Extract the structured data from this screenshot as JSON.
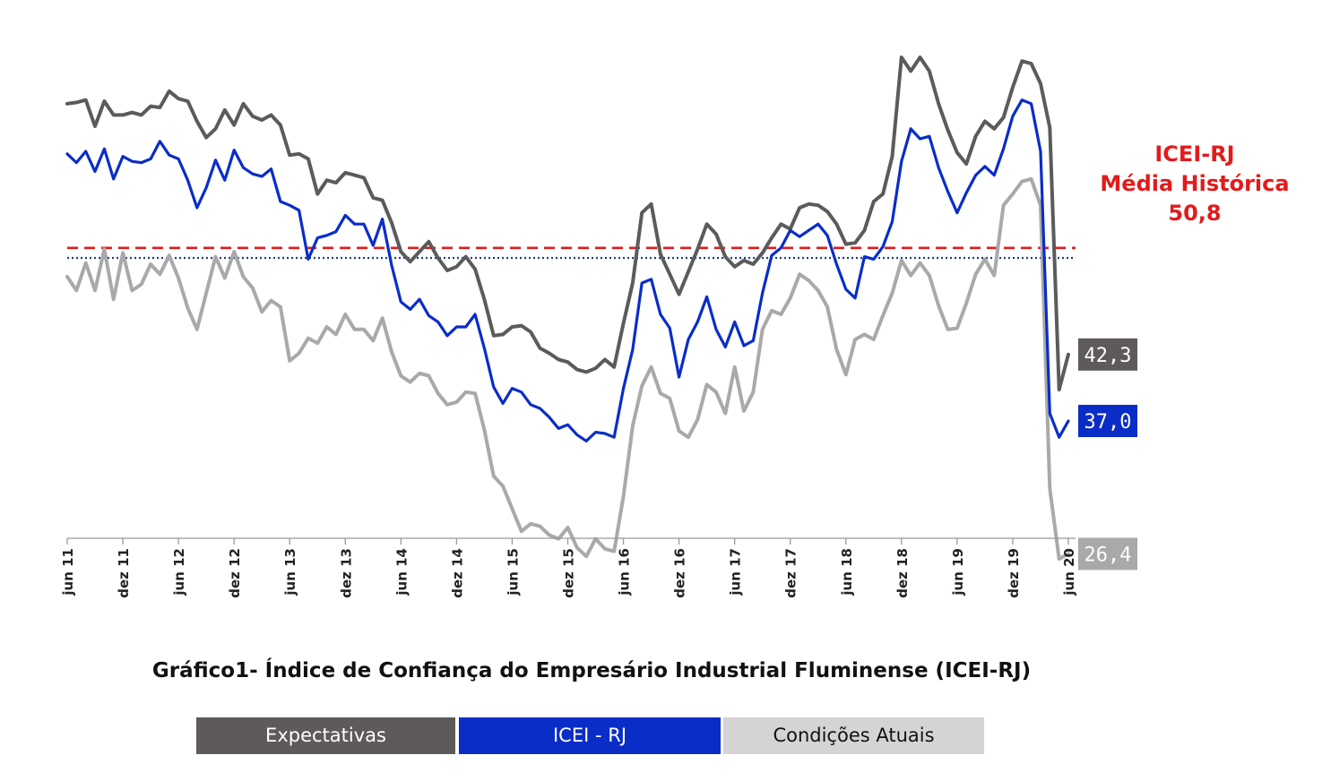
{
  "chart_data": {
    "type": "line",
    "title": "Gráfico1- Índice de Confiança do Empresário Industrial Fluminense (ICEI-RJ)",
    "ylim": [
      20,
      70
    ],
    "x_range": [
      0,
      108
    ],
    "tick_labels": [
      "jun 11",
      "dez 11",
      "jun 12",
      "dez 12",
      "jun 13",
      "dez 13",
      "jun 14",
      "dez 14",
      "jun 15",
      "dez 15",
      "jun 16",
      "dez 16",
      "jun 17",
      "dez 17",
      "jun 18",
      "dez 18",
      "jun 19",
      "dez 19",
      "jun 20"
    ],
    "tick_positions": [
      0,
      6,
      12,
      18,
      24,
      30,
      36,
      42,
      48,
      54,
      60,
      66,
      72,
      78,
      84,
      90,
      96,
      102,
      108
    ],
    "reference_line": {
      "label": "ICEI-RJ",
      "sublabel": "Média Histórica",
      "value": 50.8,
      "value_label": "50,8",
      "color": "#e21b1b"
    },
    "neutral_line": {
      "value": 50.0,
      "color": "#1f3d8a"
    },
    "series": [
      {
        "name": "Expectativas",
        "color": "#5b5b5b",
        "end_label": "42,3",
        "values": [
          62.3,
          62.4,
          62.6,
          60.5,
          62.5,
          61.4,
          61.4,
          61.6,
          61.4,
          62.1,
          62.0,
          63.3,
          62.7,
          62.5,
          60.9,
          59.6,
          60.3,
          61.8,
          60.6,
          62.3,
          61.3,
          61.0,
          61.4,
          60.6,
          58.2,
          58.3,
          57.9,
          55.1,
          56.2,
          56.0,
          56.8,
          56.6,
          56.4,
          54.8,
          54.6,
          52.8,
          50.5,
          49.7,
          50.5,
          51.3,
          50.0,
          49.0,
          49.3,
          50.1,
          49.1,
          46.7,
          43.8,
          43.9,
          44.5,
          44.6,
          44.1,
          42.8,
          42.4,
          41.9,
          41.7,
          41.1,
          40.9,
          41.2,
          41.9,
          41.3,
          44.8,
          48.0,
          53.6,
          54.3,
          50.3,
          48.7,
          47.1,
          48.9,
          50.7,
          52.7,
          51.9,
          50.1,
          49.3,
          49.8,
          49.5,
          50.4,
          51.6,
          52.7,
          52.3,
          54.0,
          54.3,
          54.2,
          53.7,
          52.7,
          51.1,
          51.2,
          52.2,
          54.5,
          55.1,
          58.1,
          66.0,
          64.9,
          66.0,
          64.9,
          62.3,
          60.2,
          58.4,
          57.5,
          59.7,
          60.9,
          60.3,
          61.2,
          63.6,
          65.7,
          65.5,
          63.9,
          60.4,
          39.5,
          42.3
        ]
      },
      {
        "name": "ICEI - RJ",
        "color": "#0a2dc8",
        "end_label": "37,0",
        "values": [
          58.3,
          57.6,
          58.5,
          56.9,
          58.7,
          56.3,
          58.1,
          57.7,
          57.6,
          57.9,
          59.3,
          58.2,
          57.9,
          56.2,
          54.0,
          55.6,
          57.8,
          56.2,
          58.6,
          57.2,
          56.7,
          56.5,
          57.1,
          54.5,
          54.2,
          53.8,
          49.9,
          51.6,
          51.8,
          52.1,
          53.4,
          52.7,
          52.7,
          51.0,
          53.1,
          49.4,
          46.5,
          45.9,
          46.7,
          45.4,
          44.9,
          43.8,
          44.5,
          44.5,
          45.5,
          42.8,
          39.7,
          38.4,
          39.6,
          39.3,
          38.3,
          38.0,
          37.3,
          36.4,
          36.7,
          35.9,
          35.4,
          36.1,
          36.0,
          35.7,
          39.6,
          42.7,
          48.0,
          48.3,
          45.5,
          44.4,
          40.5,
          43.5,
          44.9,
          46.9,
          44.3,
          42.9,
          44.9,
          43.0,
          43.4,
          47.2,
          50.2,
          50.8,
          52.2,
          51.7,
          52.2,
          52.7,
          51.8,
          49.5,
          47.5,
          46.8,
          50.1,
          49.9,
          50.9,
          52.9,
          57.7,
          60.3,
          59.5,
          59.7,
          57.2,
          55.3,
          53.6,
          55.2,
          56.6,
          57.3,
          56.6,
          58.7,
          61.3,
          62.6,
          62.3,
          58.5,
          37.6,
          35.7,
          37.0
        ]
      },
      {
        "name": "Condições Atuais",
        "color": "#a9a9a9",
        "end_label": "26,4",
        "values": [
          48.5,
          47.4,
          49.6,
          47.4,
          50.7,
          46.7,
          50.4,
          47.4,
          47.9,
          49.5,
          48.7,
          50.2,
          48.4,
          46.0,
          44.3,
          47.2,
          50.1,
          48.4,
          50.5,
          48.5,
          47.6,
          45.7,
          46.6,
          46.1,
          41.8,
          42.4,
          43.6,
          43.2,
          44.5,
          43.9,
          45.5,
          44.3,
          44.3,
          43.4,
          45.2,
          42.5,
          40.6,
          40.1,
          40.8,
          40.6,
          39.2,
          38.3,
          38.5,
          39.3,
          39.2,
          36.3,
          32.6,
          31.8,
          30.0,
          28.2,
          28.8,
          28.6,
          27.9,
          27.6,
          28.5,
          26.9,
          26.2,
          27.6,
          26.8,
          26.6,
          31.0,
          36.6,
          39.8,
          41.3,
          39.2,
          38.8,
          36.2,
          35.7,
          37.1,
          39.9,
          39.3,
          37.6,
          41.3,
          37.8,
          39.3,
          44.3,
          45.8,
          45.5,
          46.8,
          48.7,
          48.2,
          47.4,
          46.1,
          42.7,
          40.7,
          43.5,
          43.9,
          43.5,
          45.4,
          47.2,
          49.8,
          48.6,
          49.6,
          48.6,
          46.2,
          44.3,
          44.4,
          46.4,
          48.7,
          49.9,
          48.6,
          54.2,
          55.1,
          56.1,
          56.3,
          54.2,
          31.6,
          26.0,
          26.4
        ]
      }
    ],
    "legend": [
      "Expectativas",
      "ICEI - RJ",
      "Condições Atuais"
    ]
  }
}
